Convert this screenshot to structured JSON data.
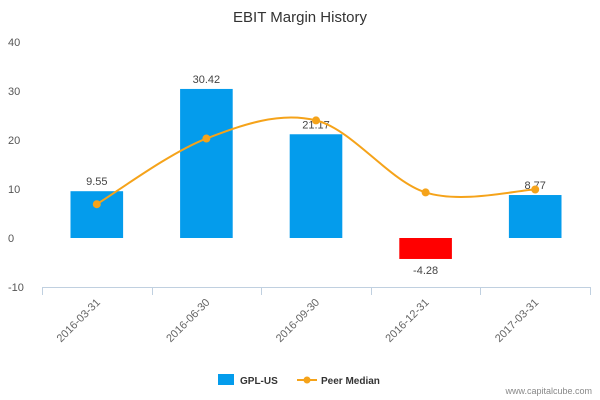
{
  "chart_data": {
    "type": "bar",
    "title": "EBIT Margin History",
    "xlabel": "",
    "ylabel": "",
    "categories": [
      "2016-03-31",
      "2016-06-30",
      "2016-09-30",
      "2016-12-31",
      "2017-03-31"
    ],
    "series": [
      {
        "name": "GPL-US",
        "type": "bar",
        "values": [
          9.55,
          30.42,
          21.17,
          -4.28,
          8.77
        ],
        "data_labels": [
          "9.55",
          "30.42",
          "21.17",
          "-4.28",
          "8.77"
        ],
        "color": "#049cec",
        "negative_color": "#ff0000"
      },
      {
        "name": "Peer Median",
        "type": "line",
        "values": [
          6.9,
          20.3,
          24.0,
          9.3,
          9.9
        ],
        "color": "#f5a31a"
      }
    ],
    "ylim": [
      -10,
      40
    ],
    "yticks": [
      -10,
      0,
      10,
      20,
      30,
      40
    ],
    "grid": false,
    "legend": "bottom-center"
  },
  "watermark": "www.capitalcube.com"
}
